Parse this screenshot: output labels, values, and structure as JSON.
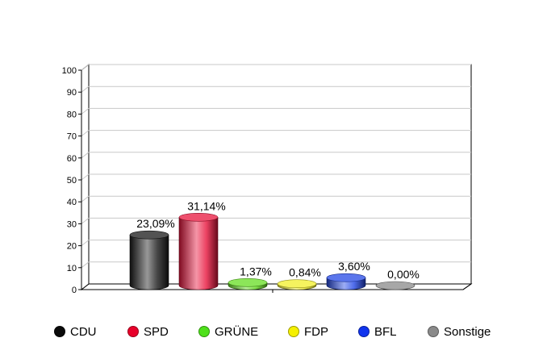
{
  "chart_data": {
    "type": "bar",
    "categories": [
      "CDU",
      "SPD",
      "GRÜNE",
      "FDP",
      "BFL",
      "Sonstige"
    ],
    "values": [
      23.09,
      31.14,
      1.37,
      0.84,
      3.6,
      0.0
    ],
    "data_labels": [
      "23,09%",
      "31,14%",
      "1,37%",
      "0,84%",
      "3,60%",
      "0,00%"
    ],
    "ylim": [
      0,
      100
    ],
    "y_ticks": [
      "0",
      "10",
      "20",
      "30",
      "40",
      "50",
      "60",
      "70",
      "80",
      "90",
      "100"
    ],
    "grid": true,
    "legend_position": "bottom",
    "colors": [
      "#1a1a1a",
      "#e8143c",
      "#66dd22",
      "#f2ef2a",
      "#2448e6",
      "#8a8a8a"
    ],
    "title": "",
    "xlabel": "",
    "ylabel": ""
  },
  "legend": [
    {
      "label": "CDU",
      "color": "#0a0a0a"
    },
    {
      "label": "SPD",
      "color": "#e8002a"
    },
    {
      "label": "GRÜNE",
      "color": "#4ee01a"
    },
    {
      "label": "FDP",
      "color": "#f5f000"
    },
    {
      "label": "BFL",
      "color": "#1034ee"
    },
    {
      "label": "Sonstige",
      "color": "#8a8a8a"
    }
  ]
}
